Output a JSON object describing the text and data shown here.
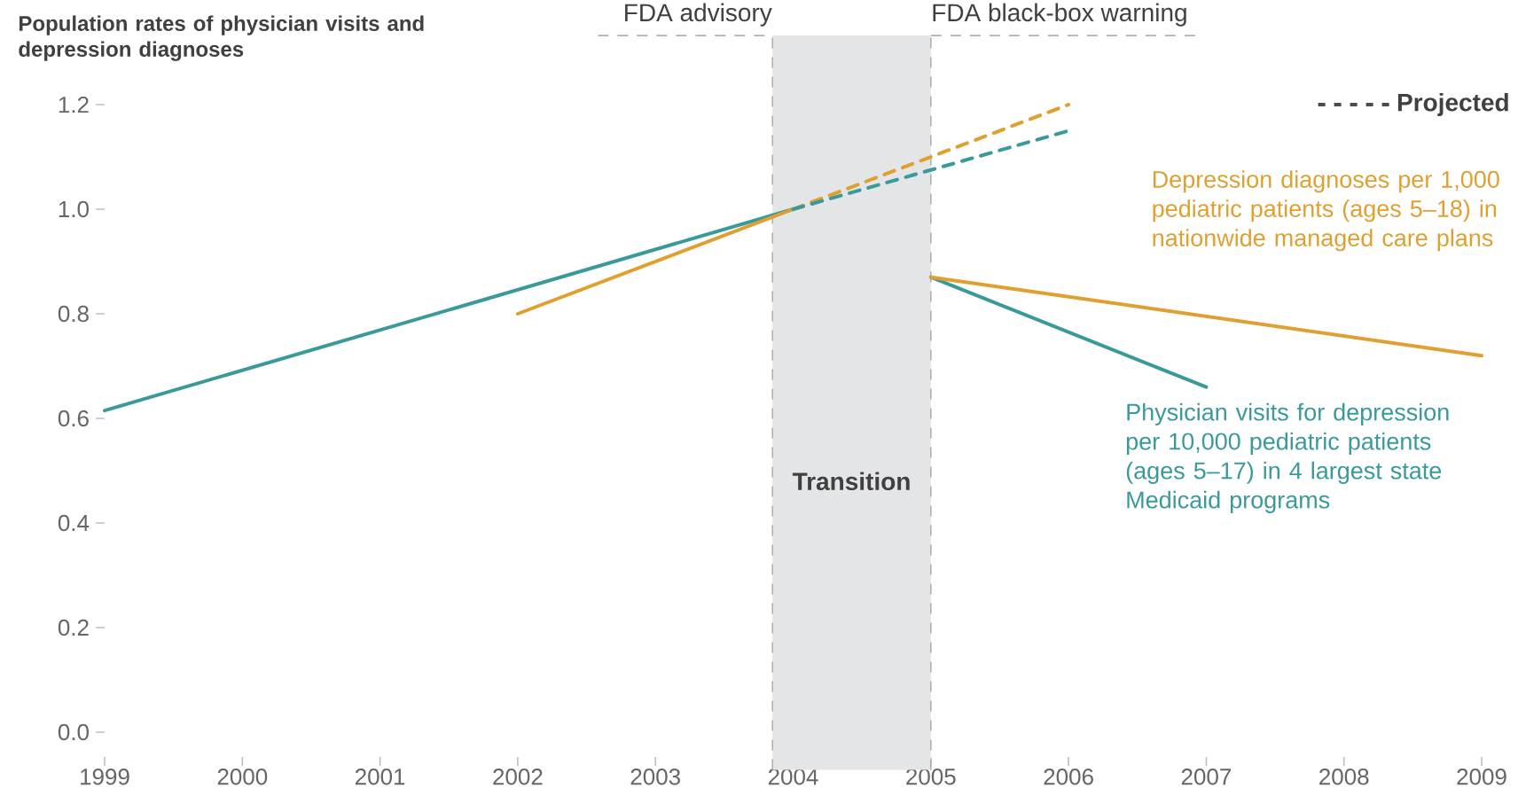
{
  "chart_data": {
    "type": "line",
    "ylabel": "Population rates of physician visits and depression diagnoses",
    "xlim": [
      1999,
      2009
    ],
    "xticks": [
      1999,
      2000,
      2001,
      2002,
      2003,
      2004,
      2005,
      2006,
      2007,
      2008,
      2009
    ],
    "ylim": [
      0,
      1.2
    ],
    "yticks": [
      {
        "value": 0,
        "label": "0.0"
      },
      0.2,
      0.4,
      0.6,
      0.8,
      {
        "value": 1,
        "label": "1.0"
      },
      1.2
    ],
    "grid": false,
    "marker": "none",
    "series": [
      {
        "color": "#3a9a9a",
        "x": [
          1999,
          2004
        ],
        "values": [
          0.615,
          1.0
        ]
      },
      {
        "name": "Physician visits for depression per 10,000 pediatric patients (ages 5–17) in 4 largest state Medicaid programs",
        "color": "#3a9a9a",
        "x": [
          2005,
          2007
        ],
        "values": [
          0.87,
          0.66
        ]
      },
      {
        "color": "#e0a030",
        "x": [
          2002,
          2004
        ],
        "values": [
          0.8,
          1.0
        ]
      },
      {
        "name": "Depression diagnoses per 1,000 pediatric patients (ages 5–18) in nationwide managed care plans",
        "color": "#e0a030",
        "x": [
          2005,
          2009
        ],
        "values": [
          0.87,
          0.72
        ]
      },
      {
        "color": "#e0a030",
        "x": [
          2004,
          2006
        ],
        "values": [
          1.0,
          1.2
        ],
        "line_style": "dashed"
      },
      {
        "color": "#3a9a9a",
        "x": [
          2004,
          2006
        ],
        "values": [
          1.0,
          1.15
        ],
        "line_style": "dashed"
      }
    ],
    "ref_lines": [
      {
        "axis": "x",
        "value": 2003.85,
        "label": "FDA advisory",
        "color": "#b0b0b0",
        "line_style": "dashed"
      },
      {
        "axis": "x",
        "value": 2005,
        "label": "FDA black-box warning",
        "color": "#b0b0b0",
        "line_style": "dashed"
      }
    ],
    "bands": [
      {
        "axis": "x",
        "from": 2003.85,
        "to": 2005,
        "label": "Transition",
        "color": "#e4e5e7"
      }
    ],
    "annotations": [
      "Projected"
    ]
  }
}
